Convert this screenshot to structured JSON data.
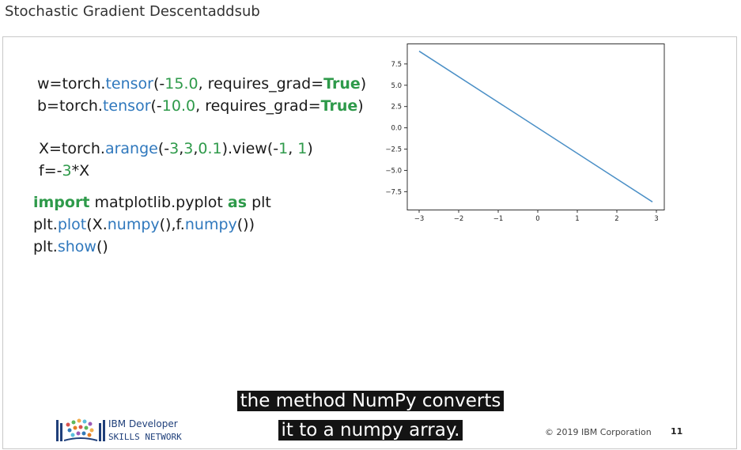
{
  "page": {
    "title": "Stochastic Gradient Descentaddsub"
  },
  "code": {
    "l1": {
      "a": "w=torch.",
      "fn": "tensor",
      "b": "(-",
      "n1": "15.0",
      "c": ", requires_grad=",
      "kw": "True",
      "d": ")"
    },
    "l2": {
      "a": "b=torch.",
      "fn": "tensor",
      "b": "(-",
      "n1": "10.0",
      "c": ", requires_grad=",
      "kw": "True",
      "d": ")"
    },
    "l3": {
      "a": "X=torch.",
      "fn": "arange",
      "b": "(-",
      "n1": "3",
      "c": ",",
      "n2": "3",
      "d": ",",
      "n3": "0.1",
      "e": ").view(-",
      "n4": "1",
      "f": ", ",
      "n5": "1",
      "g": ")"
    },
    "l4": {
      "a": "f=-",
      "n1": "3",
      "b": "*X"
    },
    "l5": {
      "kw1": "import",
      "a": " matplotlib.pyplot ",
      "kw2": "as",
      "b": " plt"
    },
    "l6": {
      "a": "plt.",
      "fn1": "plot",
      "b": "(X.",
      "fn2": "numpy",
      "c": "(),f.",
      "fn3": "numpy",
      "d": "())"
    },
    "l7": {
      "a": "plt.",
      "fn": "show",
      "b": "()"
    }
  },
  "chart_data": {
    "type": "line",
    "title": "",
    "xlabel": "",
    "ylabel": "",
    "x": [
      -3.0,
      2.9
    ],
    "y": [
      9.0,
      -8.7
    ],
    "xlim": [
      -3.3,
      3.2
    ],
    "ylim": [
      -9.6,
      9.9
    ],
    "xticks": [
      -3,
      -2,
      -1,
      0,
      1,
      2,
      3
    ],
    "xtick_labels": [
      "−3",
      "−2",
      "−1",
      "0",
      "1",
      "2",
      "3"
    ],
    "yticks": [
      7.5,
      5.0,
      2.5,
      0.0,
      -2.5,
      -5.0,
      -7.5
    ],
    "ytick_labels": [
      "7.5",
      "5.0",
      "2.5",
      "0.0",
      "−2.5",
      "−5.0",
      "−7.5"
    ],
    "grid": false,
    "color": "#4a8fc6"
  },
  "caption": {
    "line1": "the method NumPy converts",
    "line2": "it to a numpy array."
  },
  "footer": {
    "brand_line1": "IBM Developer",
    "brand_line2": "SKILLS NETWORK",
    "copyright": "© 2019 IBM Corporation",
    "page_number": "11"
  }
}
